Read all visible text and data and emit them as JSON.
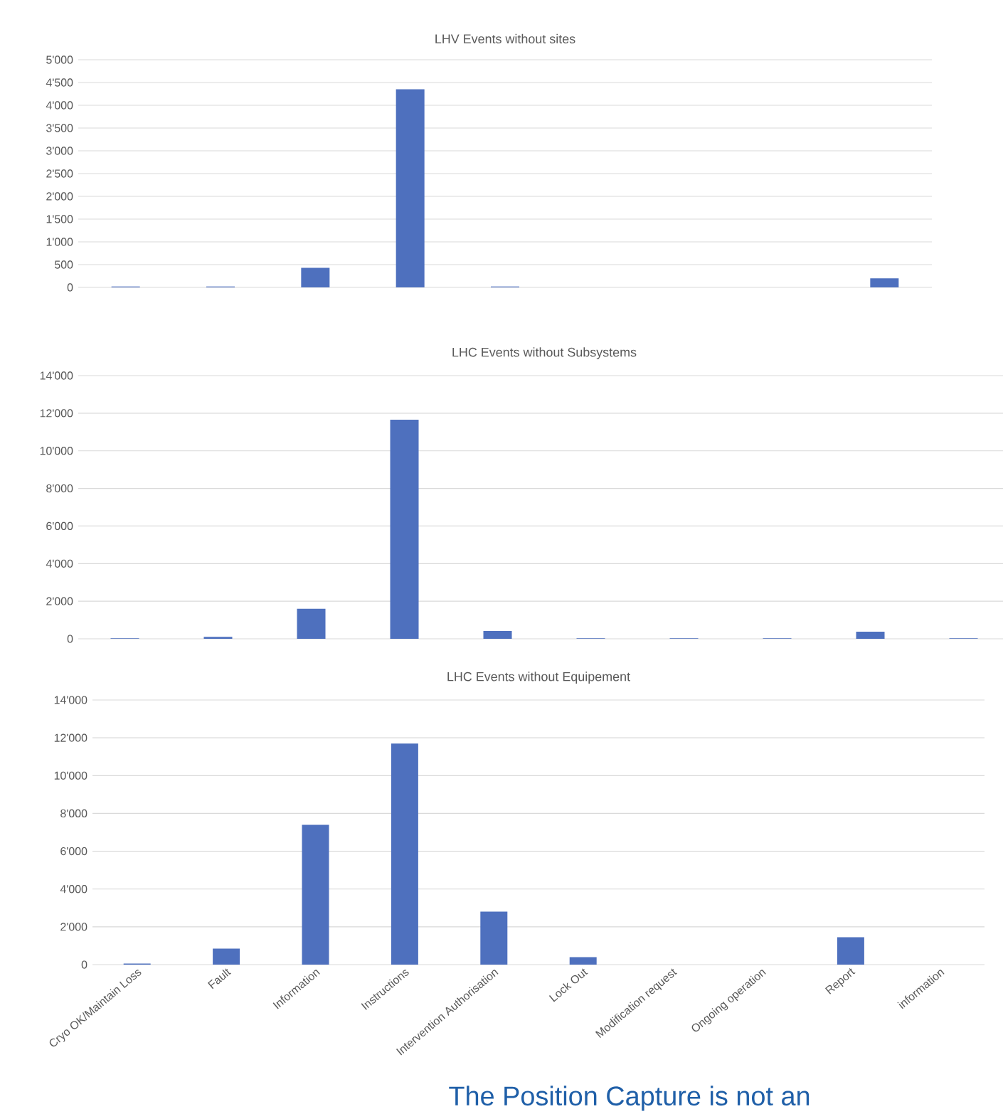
{
  "chart_data": [
    {
      "type": "bar",
      "title": "LHV Events without sites",
      "categories": [
        null,
        null,
        null,
        null,
        null,
        null,
        null,
        null,
        null
      ],
      "tick_labels": "y",
      "grid": "y",
      "color": "#4e70be",
      "values": [
        20,
        20,
        430,
        4350,
        20,
        0,
        0,
        0,
        200
      ],
      "ylim": [
        0,
        5000
      ],
      "yticks": [
        0,
        500,
        {
          "value": 1000,
          "label": "1'000"
        },
        {
          "value": 1500,
          "label": "1'500"
        },
        {
          "value": 2000,
          "label": "2'000"
        },
        {
          "value": 2500,
          "label": "2'500"
        },
        {
          "value": 3000,
          "label": "3'000"
        },
        {
          "value": 3500,
          "label": "3'500"
        },
        {
          "value": 4000,
          "label": "4'000"
        },
        {
          "value": 4500,
          "label": "4'500"
        },
        {
          "value": 5000,
          "label": "5'000"
        }
      ]
    },
    {
      "type": "bar",
      "title": "LHC Events without Subsystems",
      "categories": [
        null,
        null,
        null,
        null,
        null,
        null,
        null,
        null,
        null,
        null
      ],
      "tick_labels": "y",
      "grid": "y",
      "color": "#4e70be",
      "values": [
        30,
        100,
        1600,
        11650,
        420,
        30,
        30,
        30,
        380,
        30
      ],
      "ylim": [
        0,
        14000
      ],
      "yticks": [
        0,
        {
          "value": 2000,
          "label": "2'000"
        },
        {
          "value": 4000,
          "label": "4'000"
        },
        {
          "value": 6000,
          "label": "6'000"
        },
        {
          "value": 8000,
          "label": "8'000"
        },
        {
          "value": 10000,
          "label": "10'000"
        },
        {
          "value": 12000,
          "label": "12'000"
        },
        {
          "value": 14000,
          "label": "14'000"
        }
      ]
    },
    {
      "type": "bar",
      "title": "LHC Events without Equipement",
      "categories": [
        "Cryo OK/Maintain Loss",
        "Fault",
        "Information",
        "Instructions",
        "Intervention Authorisation",
        "Lock Out",
        "Modification request",
        "Ongoing operation",
        "Report",
        "information"
      ],
      "grid": "y",
      "color": "#4e70be",
      "values": [
        60,
        850,
        7400,
        11700,
        2800,
        400,
        0,
        0,
        1450,
        0
      ],
      "ylim": [
        0,
        14000
      ],
      "yticks": [
        0,
        {
          "value": 2000,
          "label": "2'000"
        },
        {
          "value": 4000,
          "label": "4'000"
        },
        {
          "value": 6000,
          "label": "6'000"
        },
        {
          "value": 8000,
          "label": "8'000"
        },
        {
          "value": 10000,
          "label": "10'000"
        },
        {
          "value": 12000,
          "label": "12'000"
        },
        {
          "value": 14000,
          "label": "14'000"
        }
      ],
      "annotations": [
        "The Position Capture is not an"
      ]
    }
  ]
}
